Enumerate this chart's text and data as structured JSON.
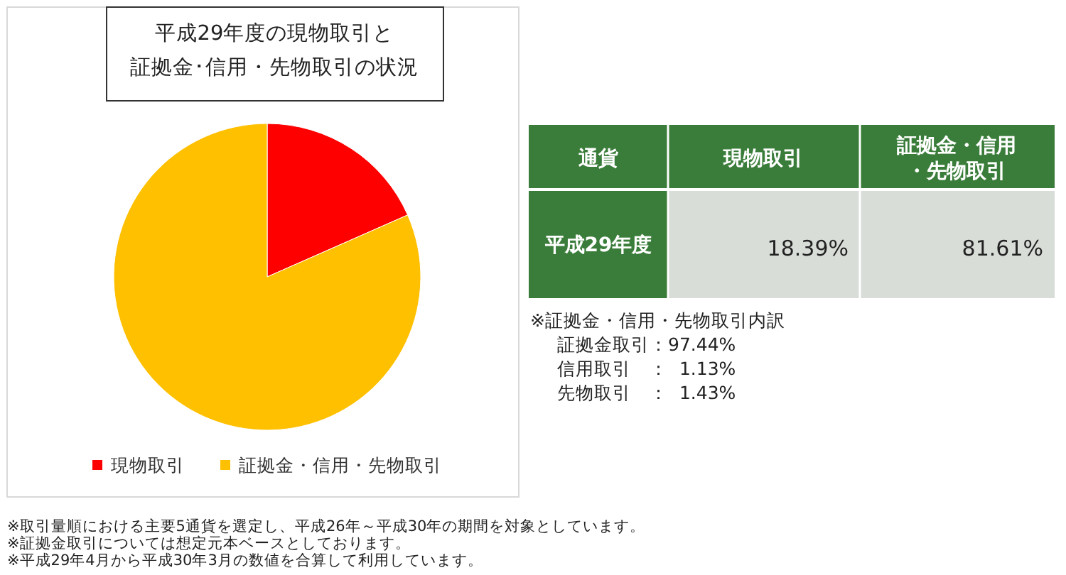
{
  "chart_data": [
    {
      "type": "pie",
      "title": "平成29年度の現物取引と証拠金･信用・先物取引の状況",
      "categories": [
        "現物取引",
        "証拠金・信用・先物取引"
      ],
      "values": [
        18.39,
        81.61
      ],
      "colors": [
        "#ff0000",
        "#ffc000"
      ],
      "legend": "bottom",
      "annotations": [
        "※取引量順における主要5通貨を選定し、平成26年～平成30年の期間を対象としています。",
        "※証拠金取引については想定元本ベースとしております。",
        "※平成29年4月から平成30年3月の数値を合算して利用しています。"
      ]
    },
    {
      "type": "other",
      "annotations": [
        "通貨",
        "現物取引",
        "証拠金・信用",
        "・先物取引",
        "平成29年度",
        "18.39%",
        "81.61%",
        "※証拠金・信用・先物取引内訳",
        "証拠金取引：97.44%",
        "信用取引　：  1.13%",
        "先物取引　：  1.43%"
      ]
    }
  ]
}
